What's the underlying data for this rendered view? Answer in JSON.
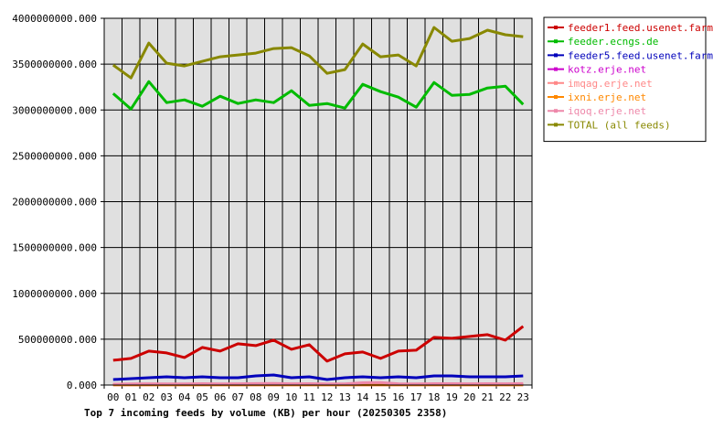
{
  "chart_data": {
    "type": "line",
    "title": "Top 7 incoming feeds by volume (KB) per hour (20250305 2358)",
    "xlabel": "",
    "ylabel": "",
    "ylim": [
      0,
      4000000000
    ],
    "yticks": [
      "0.000",
      "500000000.000",
      "1000000000.000",
      "1500000000.000",
      "2000000000.000",
      "2500000000.000",
      "3000000000.000",
      "3500000000.000",
      "4000000000.000"
    ],
    "grid": true,
    "legend_position": "right",
    "categories": [
      "00",
      "01",
      "02",
      "03",
      "04",
      "05",
      "06",
      "07",
      "08",
      "09",
      "10",
      "11",
      "12",
      "13",
      "14",
      "15",
      "16",
      "17",
      "18",
      "19",
      "20",
      "21",
      "22",
      "23"
    ],
    "series": [
      {
        "name": "feeder1.feed.usenet.farm",
        "color": "#cc0000",
        "values": [
          270000000,
          290000000,
          370000000,
          350000000,
          300000000,
          410000000,
          370000000,
          450000000,
          430000000,
          490000000,
          390000000,
          440000000,
          260000000,
          340000000,
          360000000,
          290000000,
          370000000,
          380000000,
          520000000,
          510000000,
          530000000,
          550000000,
          490000000,
          640000000
        ]
      },
      {
        "name": "feeder.ecngs.de",
        "color": "#00bb00",
        "values": [
          3180000000,
          3010000000,
          3310000000,
          3080000000,
          3110000000,
          3040000000,
          3150000000,
          3070000000,
          3110000000,
          3080000000,
          3210000000,
          3050000000,
          3070000000,
          3020000000,
          3280000000,
          3200000000,
          3140000000,
          3030000000,
          3300000000,
          3160000000,
          3170000000,
          3240000000,
          3260000000,
          3060000000
        ]
      },
      {
        "name": "feeder5.feed.usenet.farm",
        "color": "#0000bb",
        "values": [
          60000000,
          70000000,
          80000000,
          90000000,
          80000000,
          90000000,
          80000000,
          80000000,
          100000000,
          110000000,
          80000000,
          90000000,
          60000000,
          80000000,
          90000000,
          80000000,
          90000000,
          80000000,
          100000000,
          100000000,
          90000000,
          90000000,
          90000000,
          100000000
        ]
      },
      {
        "name": "kotz.erje.net",
        "color": "#cc00cc",
        "values": [
          4000000,
          4000000,
          4000000,
          4000000,
          4000000,
          4000000,
          4000000,
          4000000,
          4000000,
          4000000,
          4000000,
          4000000,
          4000000,
          4000000,
          4000000,
          4000000,
          4000000,
          4000000,
          4000000,
          4000000,
          4000000,
          4000000,
          4000000,
          4000000
        ]
      },
      {
        "name": "imqag.erje.net",
        "color": "#ff8888",
        "values": [
          3000000,
          3000000,
          3000000,
          3000000,
          3000000,
          3000000,
          3000000,
          3000000,
          3000000,
          3000000,
          3000000,
          3000000,
          3000000,
          3000000,
          3000000,
          3000000,
          3000000,
          3000000,
          3000000,
          3000000,
          3000000,
          3000000,
          3000000,
          3000000
        ]
      },
      {
        "name": "ixni.erje.net",
        "color": "#ff8800",
        "values": [
          2000000,
          2000000,
          2000000,
          2000000,
          2000000,
          2000000,
          2000000,
          2000000,
          2000000,
          2000000,
          2000000,
          2000000,
          2000000,
          2000000,
          2000000,
          2000000,
          2000000,
          2000000,
          2000000,
          2000000,
          2000000,
          2000000,
          2000000,
          2000000
        ]
      },
      {
        "name": "iqoq.erje.net",
        "color": "#ee88aa",
        "values": [
          10000000,
          12000000,
          14000000,
          13000000,
          12000000,
          15000000,
          13000000,
          14000000,
          16000000,
          18000000,
          14000000,
          15000000,
          12000000,
          13000000,
          25000000,
          28000000,
          14000000,
          13000000,
          15000000,
          15000000,
          14000000,
          15000000,
          14000000,
          16000000
        ]
      },
      {
        "name": "TOTAL (all feeds)",
        "color": "#888800",
        "values": [
          3490000000,
          3350000000,
          3730000000,
          3510000000,
          3480000000,
          3530000000,
          3580000000,
          3600000000,
          3620000000,
          3670000000,
          3680000000,
          3590000000,
          3400000000,
          3440000000,
          3720000000,
          3580000000,
          3600000000,
          3480000000,
          3900000000,
          3750000000,
          3780000000,
          3870000000,
          3820000000,
          3800000000
        ]
      }
    ]
  }
}
